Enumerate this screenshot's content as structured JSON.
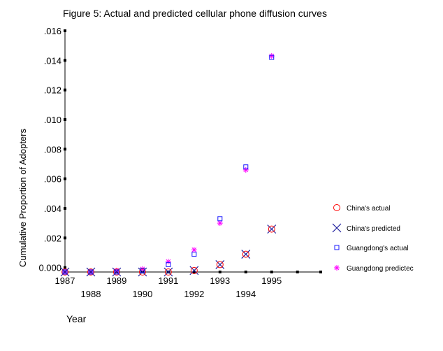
{
  "chart_data": {
    "type": "scatter",
    "title": "Figure 5: Actual and predicted cellular phone diffusion curves",
    "xlabel": "Year",
    "ylabel": "Cumulative Proportion of Adopters",
    "xlim": [
      1987,
      1996.9
    ],
    "ylim": [
      -0.0003,
      0.016
    ],
    "x_ticks_upper": [
      "1987",
      "1989",
      "1991",
      "1993",
      "1995"
    ],
    "x_ticks_lower": [
      "1988",
      "1990",
      "1992",
      "1994"
    ],
    "y_ticks": [
      {
        "value": 0.016,
        "label": ".016"
      },
      {
        "value": 0.014,
        "label": ".014"
      },
      {
        "value": 0.012,
        "label": ".012"
      },
      {
        "value": 0.01,
        "label": ".010"
      },
      {
        "value": 0.008,
        "label": ".008"
      },
      {
        "value": 0.006,
        "label": ".006"
      },
      {
        "value": 0.004,
        "label": ".004"
      },
      {
        "value": 0.002,
        "label": ".002"
      },
      {
        "value": 0.0,
        "label": "0.000"
      }
    ],
    "grid": false,
    "legend_position": "right",
    "series": [
      {
        "name": "China's actual",
        "marker": "circle",
        "color": "#ff0000",
        "x": [
          1987,
          1988,
          1989,
          1990,
          1991,
          1992,
          1993,
          1994,
          1995
        ],
        "y": [
          -0.0003,
          -0.0003,
          -0.0003,
          -0.0003,
          -0.0003,
          -0.0002,
          0.0002,
          0.0009,
          0.0026
        ]
      },
      {
        "name": "China's predicted",
        "marker": "x",
        "color": "#1c1c9c",
        "x": [
          1987,
          1988,
          1989,
          1990,
          1991,
          1992,
          1993,
          1994,
          1995
        ],
        "y": [
          -0.0003,
          -0.0003,
          -0.0003,
          -0.0003,
          -0.0003,
          -0.0002,
          0.0002,
          0.0009,
          0.0026
        ]
      },
      {
        "name": "Guangdong's actual",
        "marker": "square",
        "color": "#1a1aff",
        "x": [
          1987,
          1988,
          1989,
          1990,
          1991,
          1992,
          1993,
          1994,
          1995
        ],
        "y": [
          -0.0003,
          -0.0003,
          -0.0003,
          -0.0002,
          0.0002,
          0.0009,
          0.0033,
          0.0068,
          0.0142
        ]
      },
      {
        "name": "Guangdong predictec",
        "marker": "star",
        "color": "#ff00ff",
        "x": [
          1987,
          1988,
          1989,
          1990,
          1991,
          1992,
          1993,
          1994,
          1995
        ],
        "y": [
          -0.0003,
          -0.0003,
          -0.0002,
          -0.0001,
          0.0004,
          0.0012,
          0.003,
          0.0066,
          0.0143
        ]
      }
    ]
  }
}
